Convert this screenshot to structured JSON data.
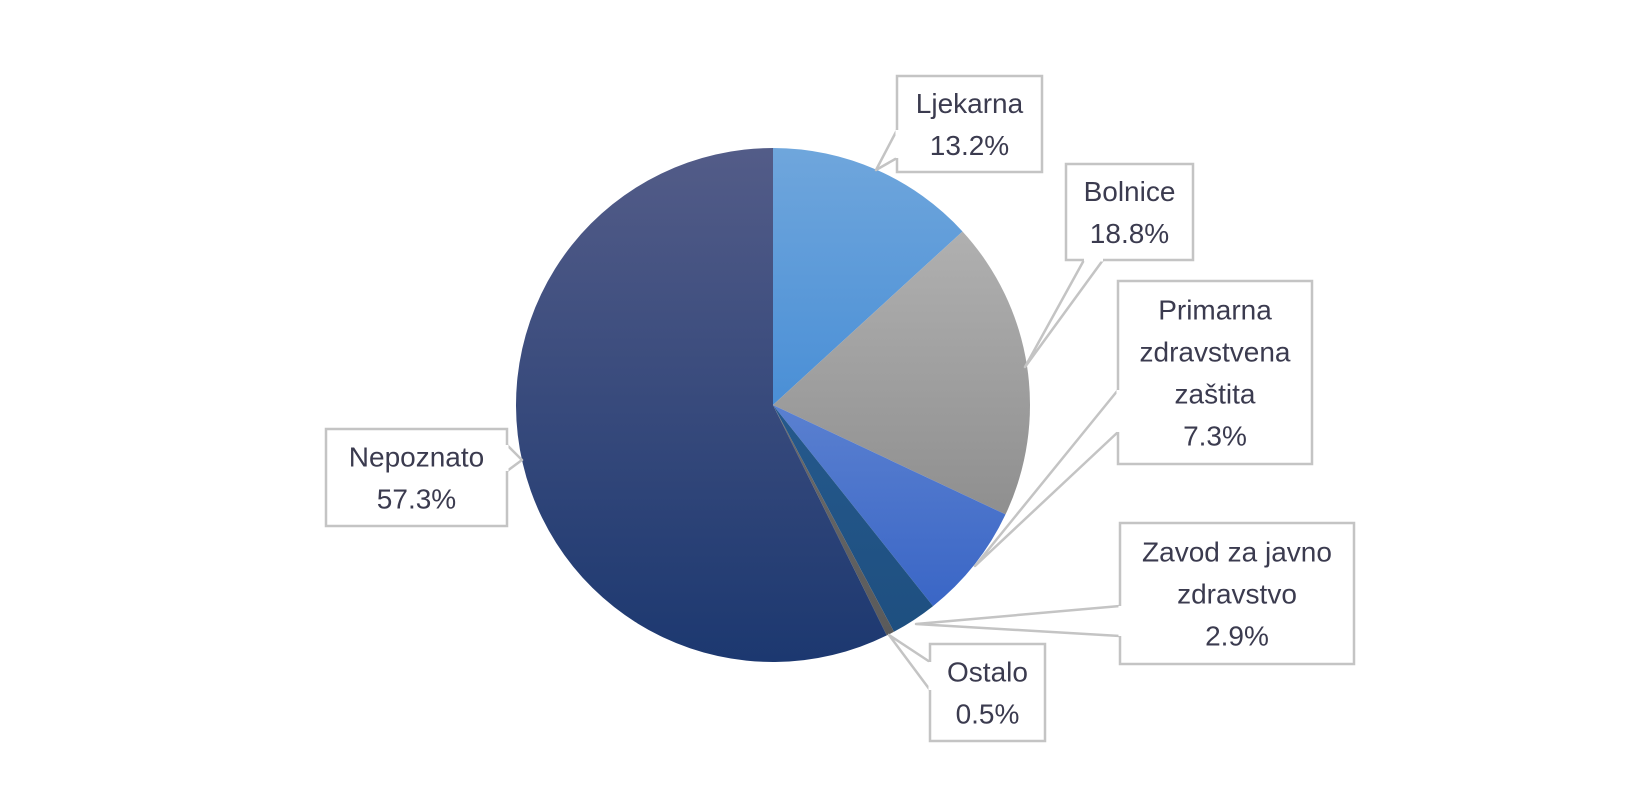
{
  "chart_data": {
    "type": "pie",
    "title": "",
    "slices": [
      {
        "label": "Ljekarna",
        "value": 13.2,
        "value_label": "13.2%",
        "color_top": "#6fa6dc",
        "color_bottom": "#4a8fd6"
      },
      {
        "label": "Bolnice",
        "value": 18.8,
        "value_label": "18.8%",
        "color_top": "#b0b0b0",
        "color_bottom": "#8f8f8f"
      },
      {
        "label": "Primarna zdravstvena zaštita",
        "value": 7.3,
        "value_label": "7.3%",
        "color_top": "#5a80d0",
        "color_bottom": "#3a66c6"
      },
      {
        "label": "Zavod za javno zdravstvo",
        "value": 2.9,
        "value_label": "2.9%",
        "color_top": "#25598c",
        "color_bottom": "#1e4f80"
      },
      {
        "label": "Ostalo",
        "value": 0.5,
        "value_label": "0.5%",
        "color_top": "#6b6b6b",
        "color_bottom": "#5a5a5a"
      },
      {
        "label": "Nepoznato",
        "value": 57.3,
        "value_label": "57.3%",
        "color_top": "#535c88",
        "color_bottom": "#1c3870"
      }
    ],
    "start_angle_deg": 0,
    "direction": "clockwise",
    "legend": "none",
    "data_labels": "callouts"
  },
  "colors": {
    "callout_border": "#c4c4c4",
    "callout_text": "#3b3b4f",
    "leader_line": "#c4c4c4"
  }
}
